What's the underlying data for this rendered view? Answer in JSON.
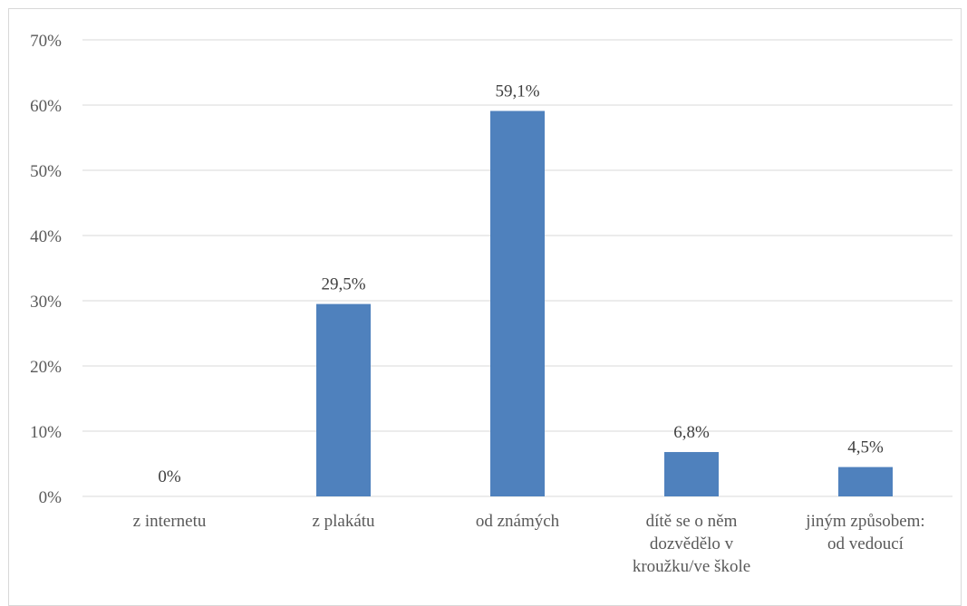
{
  "chart_data": {
    "type": "bar",
    "categories": [
      [
        "z internetu"
      ],
      [
        "z plakátu"
      ],
      [
        "od známých"
      ],
      [
        "dítě se o něm",
        "dozvědělo v",
        "kroužku/ve škole"
      ],
      [
        "jiným způsobem:",
        "od vedoucí"
      ]
    ],
    "values": [
      0,
      29.5,
      59.1,
      6.8,
      4.5
    ],
    "data_labels": [
      "0%",
      "29,5%",
      "59,1%",
      "6,8%",
      "4,5%"
    ],
    "ylim": [
      0,
      70
    ],
    "yticks": [
      0,
      10,
      20,
      30,
      40,
      50,
      60,
      70
    ],
    "ytick_labels": [
      "0%",
      "10%",
      "20%",
      "30%",
      "40%",
      "50%",
      "60%",
      "70%"
    ],
    "grid": true,
    "legend": "none",
    "bar_color": "#4f81bd",
    "grid_color": "#d9d9d9"
  }
}
